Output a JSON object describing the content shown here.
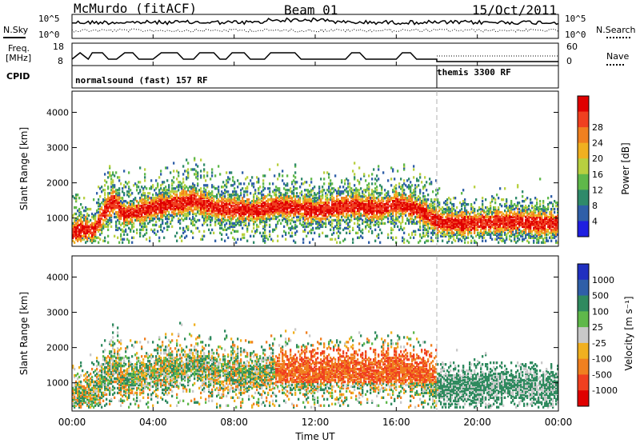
{
  "header": {
    "station": "McMurdo (fitACF)",
    "beam": "Beam 01",
    "date": "15/Oct/2011"
  },
  "top_panels": {
    "nsky_label": "N.Sky",
    "nsearch_label": "N.Search",
    "freq_label_1": "Freq.",
    "freq_label_2": "[MHz]",
    "nave_label": "Nave",
    "cpid_label": "CPID",
    "noise_left_ticks": [
      "10^5",
      "10^0"
    ],
    "noise_right_ticks": [
      "10^5",
      "10^0"
    ],
    "freq_ticks": [
      "18",
      "8"
    ],
    "nave_ticks": [
      "60",
      "0"
    ],
    "cpid_segments": [
      {
        "name": "normalsound (fast) 157 RF",
        "start_hour": 0,
        "end_hour": 18.0
      },
      {
        "name": "themis 3300 RF",
        "start_hour": 18.0,
        "end_hour": 24
      }
    ]
  },
  "chart_data": [
    {
      "type": "heatmap",
      "panel": "power",
      "xlabel": "Time UT",
      "ylabel": "Slant Range [km]",
      "xlim": [
        0,
        24
      ],
      "ylim": [
        200,
        4600
      ],
      "x_ticks": [
        "00:00",
        "04:00",
        "08:00",
        "12:00",
        "16:00",
        "20:00",
        "00:00"
      ],
      "y_ticks": [
        1000,
        2000,
        3000,
        4000
      ],
      "colorbar_label": "Power [dB]",
      "colorbar_ticks": [
        4,
        8,
        12,
        16,
        20,
        24,
        28
      ],
      "colorbar_colors": [
        "#1f1fe0",
        "#2f5fa8",
        "#2f8a6a",
        "#5fb84a",
        "#b8d040",
        "#f0b020",
        "#f08020",
        "#f04020",
        "#e00000"
      ],
      "range_band_km": [
        [
          0,
          560
        ],
        [
          0.5,
          700
        ],
        [
          1,
          620
        ],
        [
          1.5,
          1100
        ],
        [
          2,
          1500
        ],
        [
          2.5,
          1100
        ],
        [
          3,
          1150
        ],
        [
          4,
          1300
        ],
        [
          5,
          1400
        ],
        [
          6,
          1500
        ],
        [
          7,
          1300
        ],
        [
          8,
          1250
        ],
        [
          9,
          1200
        ],
        [
          10,
          1350
        ],
        [
          11,
          1300
        ],
        [
          12,
          1200
        ],
        [
          13,
          1300
        ],
        [
          14,
          1350
        ],
        [
          15,
          1250
        ],
        [
          16,
          1400
        ],
        [
          17,
          1250
        ],
        [
          18,
          900
        ],
        [
          19,
          850
        ],
        [
          20,
          850
        ],
        [
          21,
          900
        ],
        [
          22,
          900
        ],
        [
          23,
          850
        ],
        [
          24,
          850
        ]
      ]
    },
    {
      "type": "heatmap",
      "panel": "velocity",
      "xlabel": "Time UT",
      "ylabel": "Slant Range [km]",
      "xlim": [
        0,
        24
      ],
      "ylim": [
        200,
        4600
      ],
      "x_ticks": [
        "00:00",
        "04:00",
        "08:00",
        "12:00",
        "16:00",
        "20:00",
        "00:00"
      ],
      "y_ticks": [
        1000,
        2000,
        3000,
        4000
      ],
      "colorbar_label": "Velocity [m s⁻¹]",
      "colorbar_ticks": [
        "1000",
        "500",
        "100",
        "25",
        "-25",
        "-100",
        "-500",
        "-1000"
      ],
      "colorbar_colors": [
        "#2030c0",
        "#2f5fa8",
        "#2f8a5f",
        "#5fb84a",
        "#c8c8c8",
        "#f0b020",
        "#f08020",
        "#f04020",
        "#e00000"
      ]
    }
  ]
}
